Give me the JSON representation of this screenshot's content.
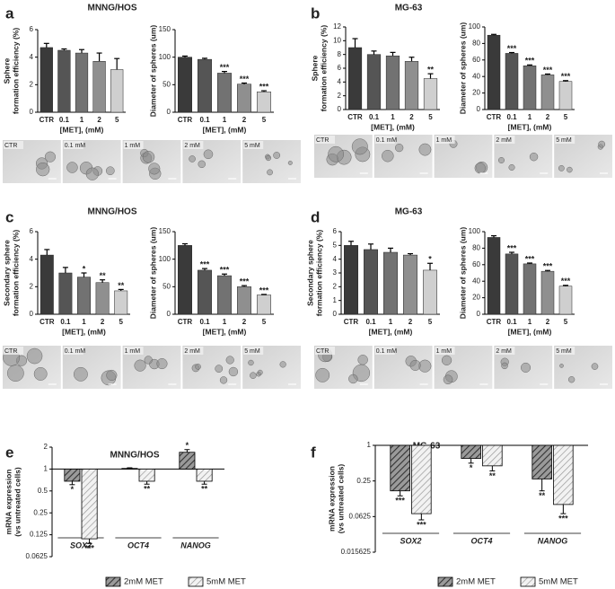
{
  "panels": [
    {
      "letter": "a",
      "title": "MNNG/HOS",
      "photos": [
        "CTR",
        "0.1 mM",
        "1 mM",
        "2 mM",
        "5 mM"
      ]
    },
    {
      "letter": "b",
      "title": "MG-63",
      "photos": [
        "CTR",
        "0.1 mM",
        "1 mM",
        "2 mM",
        "5 mM"
      ]
    },
    {
      "letter": "c",
      "title": "MNNG/HOS",
      "photos": [
        "CTR",
        "0.1 mM",
        "1 mM",
        "2 mM",
        "5 mM"
      ]
    },
    {
      "letter": "d",
      "title": "MG-63",
      "photos": [
        "CTR",
        "0.1 mM",
        "1 mM",
        "2 mM",
        "5 mM"
      ]
    },
    {
      "letter": "e",
      "title": "MNNG/HOS"
    },
    {
      "letter": "f",
      "title": "MG-63"
    }
  ],
  "chart_data": [
    {
      "type": "bar",
      "ylabel": [
        "Sphere",
        "formation efficiency (%)"
      ],
      "xlabel": "[MET], (mM)",
      "categories": [
        "CTR",
        "0.1",
        "1",
        "2",
        "5"
      ],
      "values": [
        4.7,
        4.5,
        4.3,
        3.7,
        3.1
      ],
      "errors": [
        0.3,
        0.1,
        0.25,
        0.6,
        0.8
      ],
      "annotations": [
        null,
        null,
        null,
        null,
        null
      ],
      "colors": [
        "#3a3a3a",
        "#555555",
        "#727272",
        "#8f8f8f",
        "#cfcfcf"
      ],
      "ylim": [
        0,
        6
      ],
      "yticks": [
        0,
        2,
        4,
        6
      ]
    },
    {
      "type": "bar",
      "ylabel": [
        "Diameter of spheres (um)"
      ],
      "xlabel": "[MET], (mM)",
      "categories": [
        "CTR",
        "0.1",
        "1",
        "2",
        "5"
      ],
      "values": [
        100,
        96,
        71,
        51,
        37
      ],
      "errors": [
        2,
        2,
        3,
        2,
        2
      ],
      "annotations": [
        null,
        null,
        "***",
        "***",
        "***"
      ],
      "colors": [
        "#3a3a3a",
        "#555555",
        "#727272",
        "#8f8f8f",
        "#cfcfcf"
      ],
      "ylim": [
        0,
        150
      ],
      "yticks": [
        0,
        50,
        100,
        150
      ]
    },
    {
      "type": "bar",
      "ylabel": [
        "Sphere",
        "formation efficiency (%)"
      ],
      "xlabel": "[MET], (mM)",
      "categories": [
        "CTR",
        "0.1",
        "1",
        "2",
        "5"
      ],
      "values": [
        9,
        8,
        7.8,
        7,
        4.5
      ],
      "errors": [
        1.3,
        0.5,
        0.5,
        0.6,
        0.7
      ],
      "annotations": [
        null,
        null,
        null,
        null,
        "**"
      ],
      "colors": [
        "#3a3a3a",
        "#555555",
        "#727272",
        "#8f8f8f",
        "#cfcfcf"
      ],
      "ylim": [
        0,
        12
      ],
      "yticks": [
        0,
        2,
        4,
        6,
        8,
        10,
        12
      ]
    },
    {
      "type": "bar",
      "ylabel": [
        "Diameter of spheres (um)"
      ],
      "xlabel": "[MET], (mM)",
      "categories": [
        "CTR",
        "0.1",
        "1",
        "2",
        "5"
      ],
      "values": [
        90,
        68,
        53,
        42,
        34
      ],
      "errors": [
        1,
        1,
        1,
        1,
        1
      ],
      "annotations": [
        null,
        "***",
        "***",
        "***",
        "***"
      ],
      "colors": [
        "#3a3a3a",
        "#555555",
        "#727272",
        "#8f8f8f",
        "#cfcfcf"
      ],
      "ylim": [
        0,
        100
      ],
      "yticks": [
        0,
        20,
        40,
        60,
        80,
        100
      ]
    },
    {
      "type": "bar",
      "ylabel": [
        "Secondary sphere",
        "formation efficiency (%)"
      ],
      "xlabel": "[MET], (mM)",
      "categories": [
        "CTR",
        "0.1",
        "1",
        "2",
        "5"
      ],
      "values": [
        4.3,
        3.0,
        2.7,
        2.3,
        1.7
      ],
      "errors": [
        0.4,
        0.4,
        0.3,
        0.2,
        0.1
      ],
      "annotations": [
        null,
        null,
        "*",
        "**",
        "**"
      ],
      "colors": [
        "#3a3a3a",
        "#555555",
        "#727272",
        "#8f8f8f",
        "#cfcfcf"
      ],
      "ylim": [
        0,
        6
      ],
      "yticks": [
        0,
        2,
        4,
        6
      ]
    },
    {
      "type": "bar",
      "ylabel": [
        "Diameter of spheres (um)"
      ],
      "xlabel": "[MET], (mM)",
      "categories": [
        "CTR",
        "0.1",
        "1",
        "2",
        "5"
      ],
      "values": [
        125,
        80,
        70,
        50,
        35
      ],
      "errors": [
        3,
        3,
        3,
        2,
        1
      ],
      "annotations": [
        null,
        "***",
        "***",
        "***",
        "***"
      ],
      "colors": [
        "#3a3a3a",
        "#555555",
        "#727272",
        "#8f8f8f",
        "#cfcfcf"
      ],
      "ylim": [
        0,
        150
      ],
      "yticks": [
        0,
        50,
        100,
        150
      ]
    },
    {
      "type": "bar",
      "ylabel": [
        "Secondary sphere",
        "formation efficiency (%)"
      ],
      "xlabel": "[MET], (mM)",
      "categories": [
        "CTR",
        "0.1",
        "1",
        "2",
        "5"
      ],
      "values": [
        5.0,
        4.7,
        4.5,
        4.3,
        3.2
      ],
      "errors": [
        0.3,
        0.4,
        0.3,
        0.1,
        0.5
      ],
      "annotations": [
        null,
        null,
        null,
        null,
        "*"
      ],
      "colors": [
        "#3a3a3a",
        "#555555",
        "#727272",
        "#8f8f8f",
        "#cfcfcf"
      ],
      "ylim": [
        0,
        6
      ],
      "yticks": [
        0,
        1,
        2,
        3,
        4,
        5,
        6
      ]
    },
    {
      "type": "bar",
      "ylabel": [
        "Diameter of spheres (um)"
      ],
      "xlabel": "[MET], (mM)",
      "categories": [
        "CTR",
        "0.1",
        "1",
        "2",
        "5"
      ],
      "values": [
        93,
        73,
        61,
        52,
        34
      ],
      "errors": [
        2,
        2,
        1,
        1,
        1
      ],
      "annotations": [
        null,
        "***",
        "***",
        "***",
        "***"
      ],
      "colors": [
        "#3a3a3a",
        "#555555",
        "#727272",
        "#8f8f8f",
        "#cfcfcf"
      ],
      "ylim": [
        0,
        100
      ],
      "yticks": [
        0,
        20,
        40,
        60,
        80,
        100
      ]
    },
    {
      "type": "bar",
      "ylabel": [
        "mRNA expression",
        "(vs untreated cells)"
      ],
      "log_scale": true,
      "bar_base": 1,
      "legend": "bottom",
      "categories": [
        "SOX2",
        "OCT4",
        "NANOG"
      ],
      "series": [
        {
          "name": "2mM MET",
          "color": "#555555",
          "values": [
            0.68,
            1.02,
            1.7
          ],
          "errors": [
            0.07,
            0.02,
            0.15
          ],
          "annotations": [
            "*",
            null,
            "*"
          ]
        },
        {
          "name": "5mM MET",
          "color": "#bbbbbb",
          "values": [
            0.11,
            0.68,
            0.68
          ],
          "errors": [
            0.015,
            0.06,
            0.06
          ],
          "annotations": [
            "***",
            "**",
            "**"
          ]
        }
      ],
      "ylim": [
        0.0625,
        2
      ],
      "yticks": [
        2,
        1,
        0.5,
        0.25,
        0.125,
        0.0625
      ]
    },
    {
      "type": "bar",
      "ylabel": [
        "mRNA expression",
        "(vs untreated cells)"
      ],
      "log_scale": true,
      "bar_base": 1,
      "legend": "bottom",
      "categories": [
        "SOX2",
        "OCT4",
        "NANOG"
      ],
      "series": [
        {
          "name": "2mM MET",
          "color": "#555555",
          "values": [
            0.17,
            0.6,
            0.27
          ],
          "errors": [
            0.03,
            0.1,
            0.1
          ],
          "annotations": [
            "***",
            "*",
            "**"
          ]
        },
        {
          "name": "5mM MET",
          "color": "#bbbbbb",
          "values": [
            0.07,
            0.45,
            0.1
          ],
          "errors": [
            0.015,
            0.08,
            0.03
          ],
          "annotations": [
            "***",
            "**",
            "***"
          ]
        }
      ],
      "ylim": [
        0.015625,
        1
      ],
      "yticks": [
        1,
        0.25,
        0.0625,
        0.015625
      ]
    }
  ]
}
